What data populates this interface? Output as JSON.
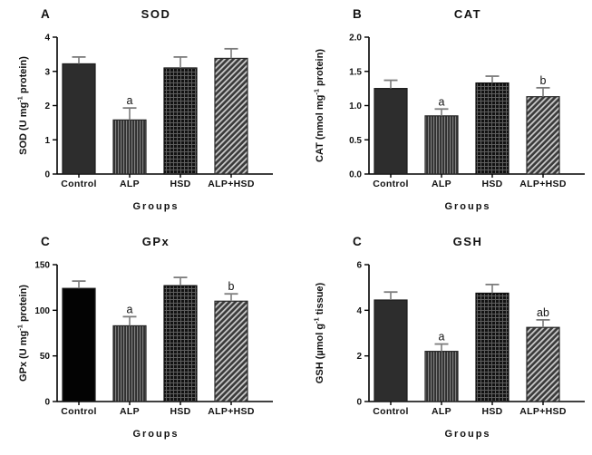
{
  "figure": {
    "background": "#ffffff",
    "axis_color": "#000000",
    "text_color": "#111111",
    "error_bar_color": "#7c7c7c",
    "sig_letter_color": "#2e2e2e"
  },
  "groups": [
    "Control",
    "ALP",
    "HSD",
    "ALP+HSD"
  ],
  "bar_styles": [
    {
      "group": "Control",
      "pattern": "solid",
      "fill": "#2d2d2d",
      "stroke": "#1c1c1c"
    },
    {
      "group": "ALP",
      "pattern": "vertical-stripes",
      "bg": "#303030",
      "line": "#8a8a8a",
      "stroke": "#262626"
    },
    {
      "group": "HSD",
      "pattern": "grid",
      "bg": "#121212",
      "line": "#5f5f5f",
      "stroke": "#0d0d0d"
    },
    {
      "group": "ALP+HSD",
      "pattern": "diagonal-stripes",
      "bg": "#3a3a3a",
      "line": "#cbcbcb",
      "stroke": "#2a2a2a"
    }
  ],
  "chart_data": [
    {
      "type": "bar",
      "panel_letter": "A",
      "title": "SOD",
      "ylabel": {
        "pre": "SOD (U mg",
        "sup": "-1",
        "post": " protein)"
      },
      "xlabel": "Groups",
      "categories": [
        "Control",
        "ALP",
        "HSD",
        "ALP+HSD"
      ],
      "values": [
        3.22,
        1.58,
        3.1,
        3.38
      ],
      "errors": [
        0.2,
        0.35,
        0.32,
        0.28
      ],
      "sig_labels": [
        "",
        "a",
        "",
        ""
      ],
      "ylim": [
        0,
        4
      ],
      "yticks": [
        0,
        1,
        2,
        3,
        4
      ],
      "ytick_labels": [
        "0",
        "1",
        "2",
        "3",
        "4"
      ],
      "grid": false,
      "legend": "none"
    },
    {
      "type": "bar",
      "panel_letter": "B",
      "title": "CAT",
      "ylabel": {
        "pre": "CAT (nmol mg",
        "sup": "-1",
        "post": " protein)"
      },
      "xlabel": "Groups",
      "categories": [
        "Control",
        "ALP",
        "HSD",
        "ALP+HSD"
      ],
      "values": [
        1.25,
        0.85,
        1.33,
        1.13
      ],
      "errors": [
        0.12,
        0.1,
        0.1,
        0.13
      ],
      "sig_labels": [
        "",
        "a",
        "",
        "b"
      ],
      "ylim": [
        0,
        2
      ],
      "yticks": [
        0,
        0.5,
        1.0,
        1.5,
        2.0
      ],
      "ytick_labels": [
        "0.0",
        "0.5",
        "1.0",
        "1.5",
        "2.0"
      ],
      "grid": false,
      "legend": "none"
    },
    {
      "type": "bar",
      "panel_letter": "C",
      "title": "GPx",
      "ylabel": {
        "pre": "GPx (U mg",
        "sup": "-1",
        "post": " protein)"
      },
      "xlabel": "Groups",
      "categories": [
        "Control",
        "ALP",
        "HSD",
        "ALP+HSD"
      ],
      "values": [
        124,
        83,
        127,
        110
      ],
      "errors": [
        8,
        10,
        9,
        8
      ],
      "sig_labels": [
        "",
        "a",
        "",
        "b"
      ],
      "ylim": [
        0,
        150
      ],
      "yticks": [
        0,
        50,
        100,
        150
      ],
      "ytick_labels": [
        "0",
        "50",
        "100",
        "150"
      ],
      "grid": false,
      "legend": "none",
      "control_fill": "#030303"
    },
    {
      "type": "bar",
      "panel_letter": "C",
      "title": "GSH",
      "ylabel": {
        "pre": "GSH (µmol g",
        "sup": "-1",
        "post": " tissue)"
      },
      "xlabel": "Groups",
      "categories": [
        "Control",
        "ALP",
        "HSD",
        "ALP+HSD"
      ],
      "values": [
        4.45,
        2.2,
        4.75,
        3.25
      ],
      "errors": [
        0.35,
        0.32,
        0.38,
        0.33
      ],
      "sig_labels": [
        "",
        "a",
        "",
        "ab"
      ],
      "ylim": [
        0,
        6
      ],
      "yticks": [
        0,
        2,
        4,
        6
      ],
      "ytick_labels": [
        "0",
        "2",
        "4",
        "6"
      ],
      "grid": false,
      "legend": "none"
    }
  ]
}
